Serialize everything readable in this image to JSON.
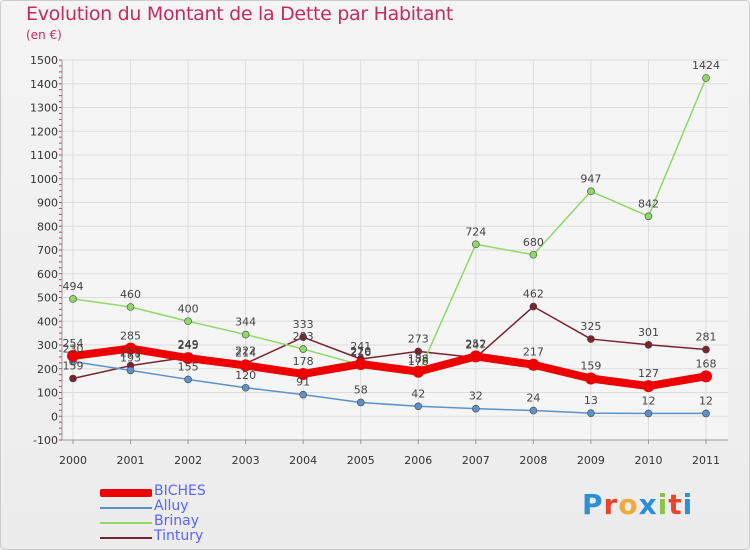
{
  "title": "Evolution du Montant de la Dette par Habitant",
  "subtitle": "(en €)",
  "brand": {
    "letters": [
      "P",
      "r",
      "o",
      "x",
      "i",
      "t",
      "i"
    ],
    "colors": [
      "#2e8fd6",
      "#e8452c",
      "#f2a93b",
      "#2e8fd6",
      "#8bc34a",
      "#e8452c",
      "#2e8fd6"
    ]
  },
  "chart_data": {
    "type": "line",
    "title": "Evolution du Montant de la Dette par Habitant",
    "ylabel": "(en €)",
    "xlabel": "",
    "categories": [
      "2000",
      "2001",
      "2002",
      "2003",
      "2004",
      "2005",
      "2006",
      "2007",
      "2008",
      "2009",
      "2010",
      "2011"
    ],
    "ylim": [
      -100,
      1500
    ],
    "yticks": [
      -100,
      0,
      100,
      200,
      300,
      400,
      500,
      600,
      700,
      800,
      900,
      1000,
      1100,
      1200,
      1300,
      1400,
      1500
    ],
    "grid": true,
    "legend_position": "bottom-left",
    "series": [
      {
        "name": "Tintury",
        "color": "#7b2230",
        "values": [
          159,
          213,
          249,
          222,
          333,
          241,
          273,
          247,
          462,
          325,
          301,
          281
        ]
      },
      {
        "name": "Brinay",
        "color": "#8fd86a",
        "values": [
          494,
          460,
          400,
          344,
          283,
          216,
          178,
          724,
          680,
          947,
          842,
          1424
        ]
      },
      {
        "name": "Alluy",
        "color": "#5b93c8",
        "values": [
          230,
          193,
          155,
          120,
          91,
          58,
          42,
          32,
          24,
          13,
          12,
          12
        ]
      },
      {
        "name": "BICHES",
        "color": "#ee0000",
        "values": [
          254,
          285,
          245,
          214,
          178,
          220,
          188,
          252,
          217,
          159,
          127,
          168
        ]
      }
    ]
  }
}
